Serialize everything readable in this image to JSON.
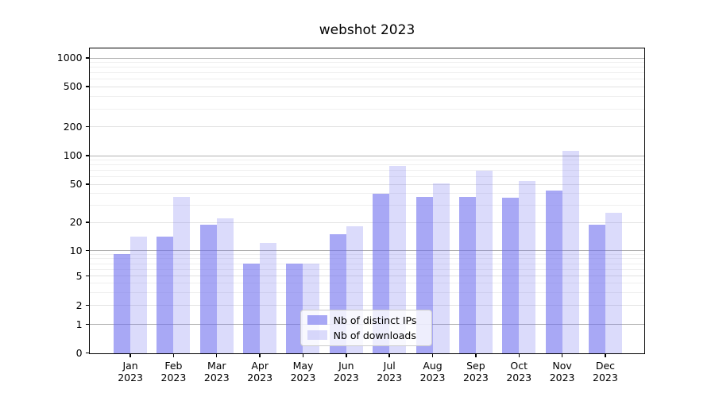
{
  "chart_data": {
    "type": "bar",
    "title": "webshot 2023",
    "yscale": "asinh",
    "grid": true,
    "legend_position": "lower center",
    "categories": [
      "Jan 2023",
      "Feb 2023",
      "Mar 2023",
      "Apr 2023",
      "May 2023",
      "Jun 2023",
      "Jul 2023",
      "Aug 2023",
      "Sep 2023",
      "Oct 2023",
      "Nov 2023",
      "Dec 2023"
    ],
    "series": [
      {
        "name": "Nb of distinct IPs",
        "color": "#6e6eee",
        "alpha": 0.6,
        "values": [
          9,
          14,
          19,
          7,
          7,
          15,
          40,
          37,
          37,
          36,
          43,
          19
        ]
      },
      {
        "name": "Nb of downloads",
        "color": "#6e6eee",
        "alpha": 0.25,
        "values": [
          14,
          37,
          22,
          12,
          7,
          18,
          78,
          51,
          69,
          54,
          112,
          25
        ]
      }
    ],
    "y_ticks": [
      0,
      1,
      2,
      5,
      10,
      20,
      50,
      100,
      200,
      500,
      1000
    ],
    "y_tick_labels": [
      "0",
      "1",
      "2",
      "5",
      "10",
      "20",
      "50",
      "100",
      "200",
      "500",
      "1000"
    ],
    "ylim": [
      0,
      1270
    ],
    "colors": {
      "bar_dark_rendered": "#a8a8f5",
      "bar_light_rendered": "#dbdbf9",
      "grid_major": "#b0b0b0",
      "grid_minor": "#efefef",
      "axis": "#000000"
    }
  }
}
